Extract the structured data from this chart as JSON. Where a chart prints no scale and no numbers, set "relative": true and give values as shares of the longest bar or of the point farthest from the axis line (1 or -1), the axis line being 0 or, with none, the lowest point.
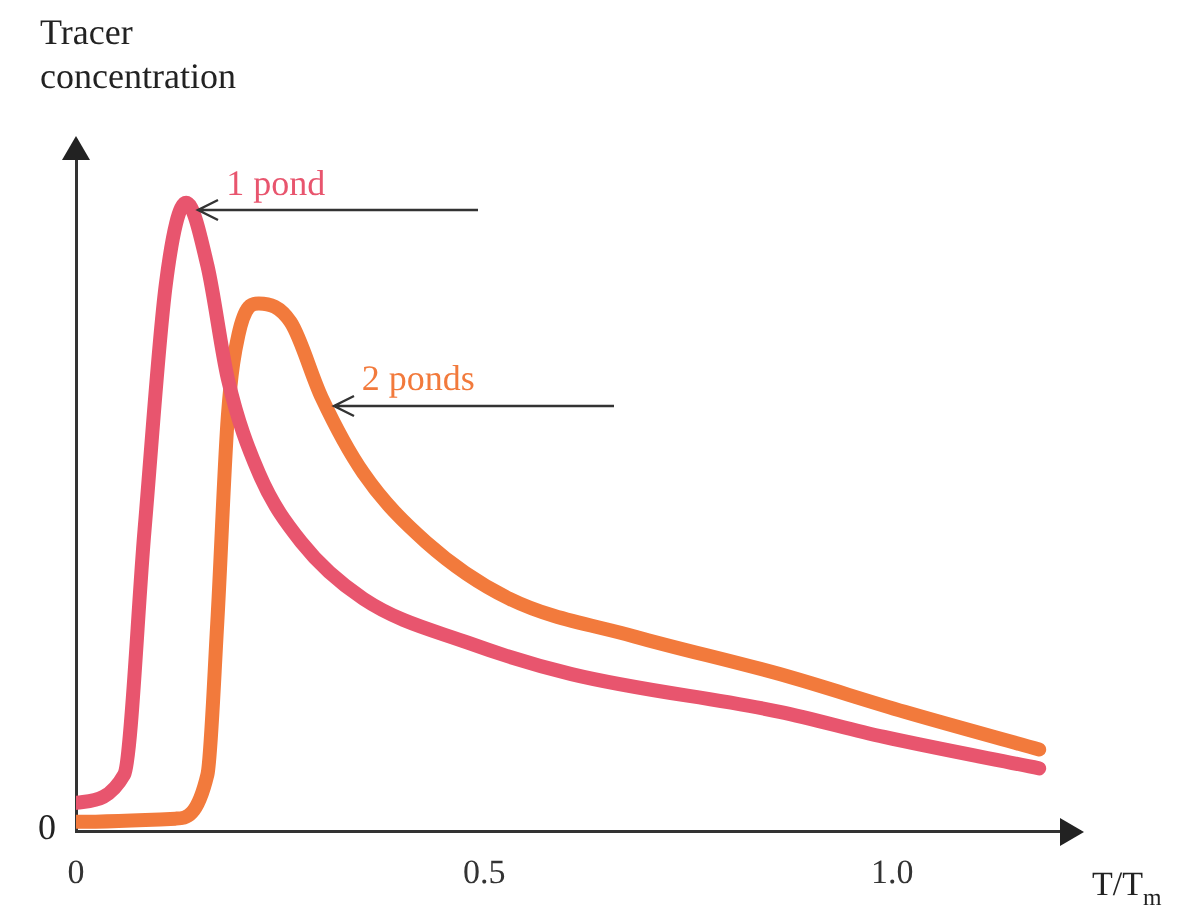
{
  "chart_data": {
    "type": "line",
    "relative": true,
    "ylabel": "Tracer concentration",
    "xlabel": "T/T$_{m}$",
    "xlim": [
      0,
      1.23
    ],
    "xticks": [
      0,
      0.5,
      {
        "value": 1,
        "label": "1.0"
      }
    ],
    "grid": false,
    "legend": false,
    "marker": "none",
    "line_style": "solid",
    "series": [
      {
        "name": "1 pond",
        "color": "#e8556e",
        "x": [
          0,
          0.059,
          0.084,
          0.11,
          0.135,
          0.161,
          0.186,
          0.224,
          0.276,
          0.352,
          0.48,
          0.607,
          0.862,
          0.99,
          1.18
        ],
        "values": [
          0.045,
          0.09,
          0.48,
          0.87,
          1,
          0.9,
          0.72,
          0.57,
          0.46,
          0.37,
          0.3,
          0.25,
          0.19,
          0.15,
          0.1
        ]
      },
      {
        "name": "2 ponds",
        "color": "#f27a3c",
        "x": [
          0,
          0.122,
          0.161,
          0.173,
          0.186,
          0.199,
          0.224,
          0.263,
          0.301,
          0.352,
          0.429,
          0.531,
          0.684,
          0.862,
          1.015,
          1.18
        ],
        "values": [
          0.015,
          0.02,
          0.09,
          0.33,
          0.66,
          0.79,
          0.84,
          0.81,
          0.69,
          0.57,
          0.46,
          0.37,
          0.31,
          0.25,
          0.19,
          0.13
        ]
      }
    ],
    "annotations": [
      "0"
    ]
  }
}
